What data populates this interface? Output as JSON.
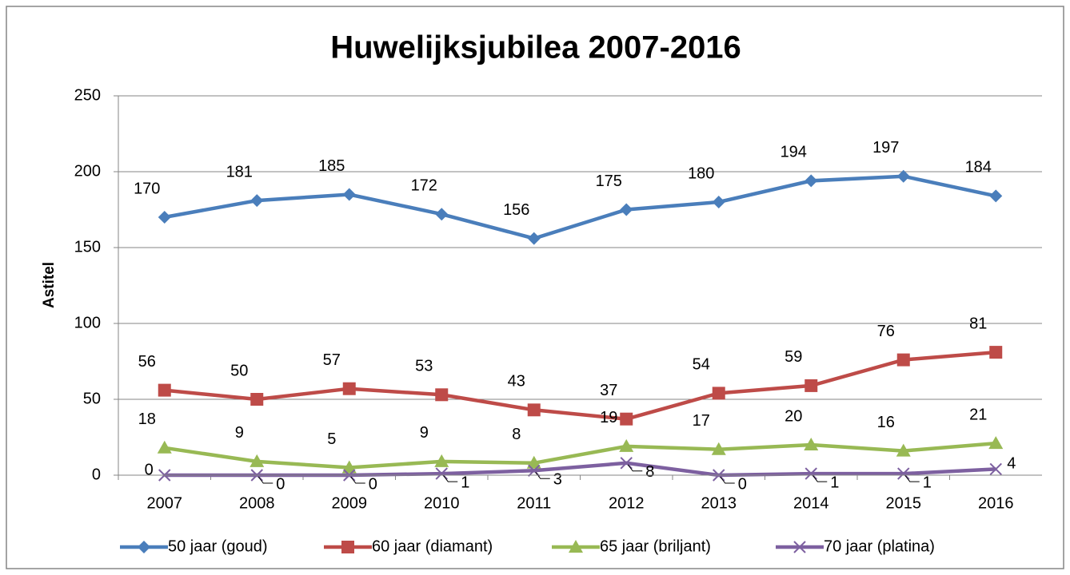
{
  "chart_data": {
    "type": "line",
    "title": "Huwelijksjubilea 2007-2016",
    "y_label": "Astitel",
    "categories": [
      "2007",
      "2008",
      "2009",
      "2010",
      "2011",
      "2012",
      "2013",
      "2014",
      "2015",
      "2016"
    ],
    "series": [
      {
        "name": "50 jaar (goud)",
        "color": "#4a7ebb",
        "marker": "diamond",
        "values": [
          170,
          181,
          185,
          172,
          156,
          175,
          180,
          194,
          197,
          184
        ]
      },
      {
        "name": "60 jaar (diamant)",
        "color": "#be4b48",
        "marker": "square",
        "values": [
          56,
          50,
          57,
          53,
          43,
          37,
          54,
          59,
          76,
          81
        ]
      },
      {
        "name": "65 jaar (briljant)",
        "color": "#98b954",
        "marker": "triangle",
        "values": [
          18,
          9,
          5,
          9,
          8,
          19,
          17,
          20,
          16,
          21
        ]
      },
      {
        "name": "70 jaar (platina)",
        "color": "#7d60a0",
        "marker": "x",
        "values": [
          0,
          0,
          0,
          1,
          3,
          8,
          0,
          1,
          1,
          4
        ]
      }
    ],
    "ylim": [
      0,
      250
    ],
    "yticks": [
      0,
      50,
      100,
      150,
      200,
      250
    ],
    "grid": true,
    "legend": "bottom"
  }
}
